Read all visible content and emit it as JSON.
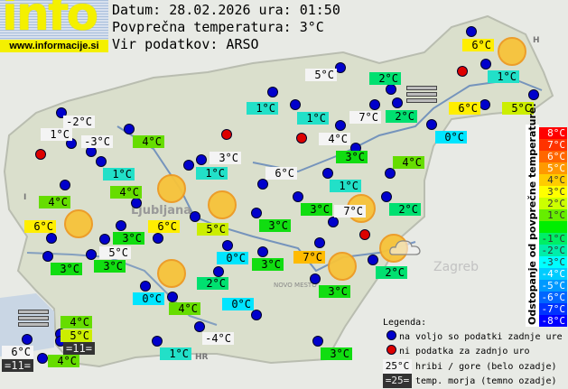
{
  "logo": {
    "text": "info",
    "url": "www.informacije.si"
  },
  "header": {
    "date_line": "Datum: 28.02.2026 ura: 01:50",
    "avg_line": "Povprečna temperatura: 3°C",
    "source_line": "Vir podatkov: ARSO"
  },
  "map_labels": {
    "ljubljana": "Ljubljana",
    "zagreb": "Zagreb",
    "novo_mesto": "NOVO MESTO",
    "hr": "HR",
    "h": "H",
    "i": "I"
  },
  "colors": {
    "hill": "#f4f4f4",
    "sea": "#333333",
    "dev": {
      "4": "#ffbb00",
      "3": "#ffee00",
      "2": "#ccee00",
      "1": "#66dd00",
      "0": "#11dd11",
      "-1": "#00e070",
      "-2": "#22e0c8",
      "-3": "#00e5ff"
    },
    "dot_available": "#0000cc",
    "dot_missing": "#dd0000"
  },
  "stations": [
    {
      "text": "-2°C",
      "kind": "hill"
    },
    {
      "text": "1°C",
      "kind": "hill"
    },
    {
      "text": "-3°C",
      "kind": "hill"
    },
    {
      "text": "4°C",
      "dev": 1
    },
    {
      "text": "3°C",
      "kind": "hill"
    },
    {
      "text": "1°C",
      "dev": -2
    },
    {
      "text": "1°C",
      "dev": -2
    },
    {
      "text": "4°C",
      "dev": 1
    },
    {
      "text": "4°C",
      "dev": 1
    },
    {
      "text": "6°C",
      "dev": 3
    },
    {
      "text": "6°C",
      "dev": 3
    },
    {
      "text": "3°C",
      "dev": 0
    },
    {
      "text": "5°C",
      "kind": "hill"
    },
    {
      "text": "3°C",
      "dev": 0
    },
    {
      "text": "3°C",
      "dev": 0
    },
    {
      "text": "5°C",
      "dev": 2
    },
    {
      "text": "3°C",
      "dev": 0
    },
    {
      "text": "0°C",
      "dev": -3
    },
    {
      "text": "3°C",
      "dev": 0
    },
    {
      "text": "7°C",
      "dev": 4
    },
    {
      "text": "2°C",
      "dev": -1
    },
    {
      "text": "3°C",
      "dev": 0
    },
    {
      "text": "2°C",
      "dev": -1
    },
    {
      "text": "0°C",
      "dev": -3
    },
    {
      "text": "4°C",
      "dev": 1
    },
    {
      "text": "0°C",
      "dev": -3
    },
    {
      "text": "4°C",
      "dev": 1
    },
    {
      "text": "5°C",
      "dev": 2
    },
    {
      "text": "=11=",
      "kind": "sea"
    },
    {
      "text": "6°C",
      "kind": "hill"
    },
    {
      "text": "=11=",
      "kind": "sea"
    },
    {
      "text": "4°C",
      "dev": 1
    },
    {
      "text": "1°C",
      "dev": -2
    },
    {
      "text": "-4°C",
      "kind": "hill"
    },
    {
      "text": "3°C",
      "dev": 0
    },
    {
      "text": "5°C",
      "kind": "hill"
    },
    {
      "text": "2°C",
      "dev": -1
    },
    {
      "text": "6°C",
      "dev": 3
    },
    {
      "text": "1°C",
      "dev": -2
    },
    {
      "text": "1°C",
      "dev": -2
    },
    {
      "text": "1°C",
      "dev": -2
    },
    {
      "text": "7°C",
      "kind": "hill"
    },
    {
      "text": "2°C",
      "dev": -1
    },
    {
      "text": "6°C",
      "dev": 3
    },
    {
      "text": "5°C",
      "dev": 2
    },
    {
      "text": "4°C",
      "kind": "hill"
    },
    {
      "text": "0°C",
      "dev": -3
    },
    {
      "text": "3°C",
      "dev": 0
    },
    {
      "text": "4°C",
      "dev": 1
    },
    {
      "text": "6°C",
      "kind": "hill"
    },
    {
      "text": "1°C",
      "dev": -2
    },
    {
      "text": "3°C",
      "dev": 0
    },
    {
      "text": "7°C",
      "kind": "hill"
    },
    {
      "text": "2°C",
      "dev": -1
    }
  ],
  "scale": {
    "title": "Odstopanje od povprečne temperature:",
    "steps": [
      {
        "label": "8°C",
        "color": "#ff0000",
        "fg": "#ffffff"
      },
      {
        "label": "7°C",
        "color": "#ff3300",
        "fg": "#ffffff"
      },
      {
        "label": "6°C",
        "color": "#ff6600",
        "fg": "#ffffff"
      },
      {
        "label": "5°C",
        "color": "#ff9900",
        "fg": "#ffffff"
      },
      {
        "label": "4°C",
        "color": "#ffcc00",
        "fg": "#333333"
      },
      {
        "label": "3°C",
        "color": "#ffff00",
        "fg": "#333333"
      },
      {
        "label": "2°C",
        "color": "#ccff00",
        "fg": "#333333"
      },
      {
        "label": "1°C",
        "color": "#66ee00",
        "fg": "#333333"
      },
      {
        "label": "",
        "color": "#00ee00",
        "fg": "#333333"
      },
      {
        "label": "-1°C",
        "color": "#00ee66",
        "fg": "#333333"
      },
      {
        "label": "-2°C",
        "color": "#00eeaa",
        "fg": "#333333"
      },
      {
        "label": "-3°C",
        "color": "#00ffff",
        "fg": "#333333"
      },
      {
        "label": "-4°C",
        "color": "#00ccff",
        "fg": "#ffffff"
      },
      {
        "label": "-5°C",
        "color": "#0099ff",
        "fg": "#ffffff"
      },
      {
        "label": "-6°C",
        "color": "#0066ff",
        "fg": "#ffffff"
      },
      {
        "label": "-7°C",
        "color": "#0033ff",
        "fg": "#ffffff"
      },
      {
        "label": "-8°C",
        "color": "#0000ff",
        "fg": "#ffffff"
      }
    ]
  },
  "legend": {
    "title": "Legenda:",
    "available": "na voljo so podatki zadnje ure",
    "missing": "ni podatka za zadnjo uro",
    "hill_sample": "25°C",
    "hill_text": "hribi / gore (belo ozadje)",
    "sea_sample": "=25=",
    "sea_text": "temp. morja (temno ozadje)"
  }
}
